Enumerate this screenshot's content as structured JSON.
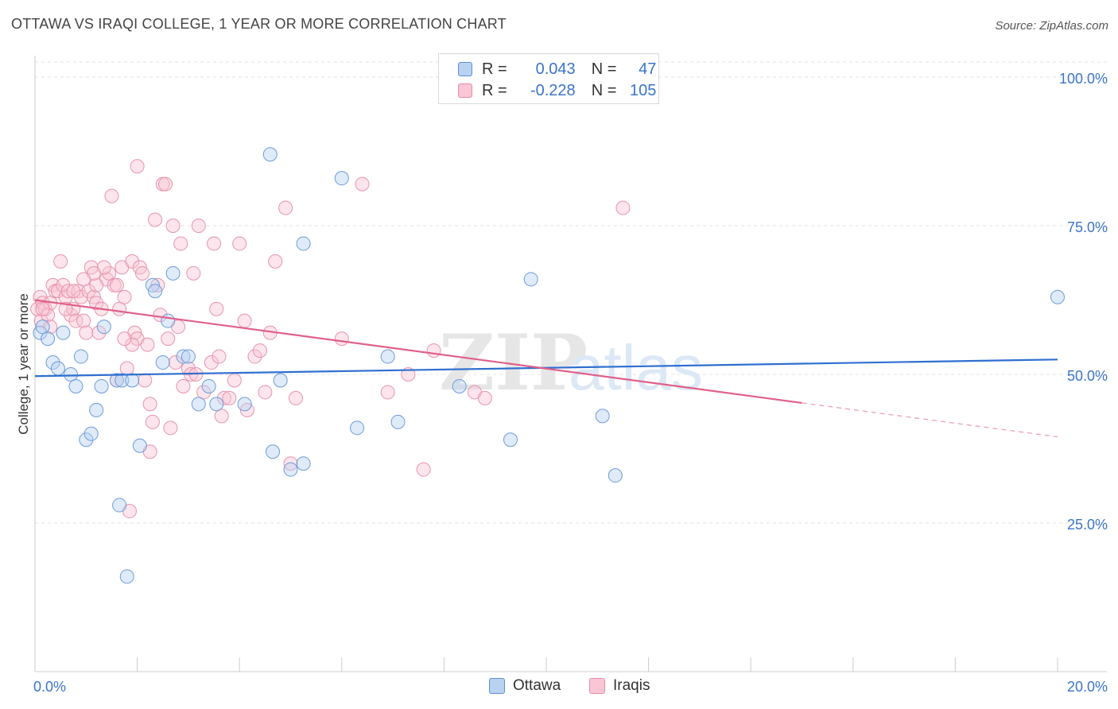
{
  "title": "OTTAWA VS IRAQI COLLEGE, 1 YEAR OR MORE CORRELATION CHART",
  "source": "Source: ZipAtlas.com",
  "watermark": {
    "zip": "ZIP",
    "atlas": "atlas"
  },
  "legend": {
    "r_label": "R =",
    "n_label": "N =",
    "series": [
      {
        "name": "Ottawa",
        "r": "0.043",
        "n": "47",
        "fill": "#b9d2f2",
        "stroke": "#5b8fd6"
      },
      {
        "name": "Iraqis",
        "r": "-0.228",
        "n": "105",
        "fill": "#f8c6d5",
        "stroke": "#e88aa8"
      }
    ]
  },
  "chart_data": {
    "type": "scatter",
    "title": "OTTAWA VS IRAQI COLLEGE, 1 YEAR OR MORE CORRELATION CHART",
    "xlabel": "",
    "ylabel": "College, 1 year or more",
    "xlim": [
      0,
      20
    ],
    "ylim": [
      0,
      103
    ],
    "x_tick_labels": [
      "0.0%",
      "20.0%"
    ],
    "y_tick_labels": [
      {
        "value": 25,
        "label": "25.0%"
      },
      {
        "value": 50,
        "label": "50.0%"
      },
      {
        "value": 75,
        "label": "75.0%"
      },
      {
        "value": 100,
        "label": "100.0%"
      }
    ],
    "series": [
      {
        "name": "Ottawa",
        "color": "#5b8fd6",
        "fill": "#b9d2f2",
        "trend": {
          "x": [
            0,
            20
          ],
          "y": [
            49.7,
            52.5
          ]
        },
        "points": [
          [
            0.1,
            57
          ],
          [
            0.15,
            58
          ],
          [
            0.25,
            56
          ],
          [
            0.35,
            52
          ],
          [
            0.45,
            51
          ],
          [
            0.55,
            57
          ],
          [
            0.7,
            50
          ],
          [
            0.8,
            48
          ],
          [
            0.9,
            53
          ],
          [
            1.0,
            39
          ],
          [
            1.1,
            40
          ],
          [
            1.2,
            44
          ],
          [
            1.3,
            48
          ],
          [
            1.35,
            58
          ],
          [
            1.6,
            49
          ],
          [
            1.7,
            49
          ],
          [
            1.65,
            28
          ],
          [
            1.8,
            16
          ],
          [
            1.9,
            49
          ],
          [
            2.05,
            38
          ],
          [
            2.3,
            65
          ],
          [
            2.35,
            64
          ],
          [
            2.5,
            52
          ],
          [
            2.6,
            59
          ],
          [
            2.7,
            67
          ],
          [
            2.9,
            53
          ],
          [
            3.0,
            53
          ],
          [
            3.2,
            45
          ],
          [
            3.4,
            48
          ],
          [
            3.55,
            45
          ],
          [
            4.1,
            45
          ],
          [
            4.6,
            87
          ],
          [
            4.65,
            37
          ],
          [
            4.8,
            49
          ],
          [
            5.0,
            34
          ],
          [
            5.25,
            72
          ],
          [
            5.25,
            35
          ],
          [
            6.0,
            83
          ],
          [
            6.3,
            41
          ],
          [
            6.9,
            53
          ],
          [
            7.1,
            42
          ],
          [
            8.3,
            48
          ],
          [
            9.3,
            39
          ],
          [
            9.7,
            66
          ],
          [
            11.1,
            43
          ],
          [
            11.35,
            33
          ],
          [
            20.0,
            63
          ]
        ]
      },
      {
        "name": "Iraqis",
        "color": "#e0608a",
        "fill": "#f8c6d5",
        "trend": {
          "x": [
            0,
            15
          ],
          "y": [
            62.5,
            45.2
          ],
          "dashed_x": [
            15,
            20
          ],
          "dashed_y": [
            45.2,
            39.5
          ]
        },
        "points": [
          [
            0.05,
            61
          ],
          [
            0.1,
            63
          ],
          [
            0.12,
            59
          ],
          [
            0.15,
            62
          ],
          [
            0.2,
            61
          ],
          [
            0.25,
            60
          ],
          [
            0.3,
            62
          ],
          [
            0.35,
            65
          ],
          [
            0.4,
            64
          ],
          [
            0.45,
            64
          ],
          [
            0.5,
            69
          ],
          [
            0.55,
            65
          ],
          [
            0.6,
            63
          ],
          [
            0.65,
            64
          ],
          [
            0.7,
            60
          ],
          [
            0.75,
            61
          ],
          [
            0.8,
            59
          ],
          [
            0.85,
            64
          ],
          [
            0.9,
            63
          ],
          [
            0.95,
            59
          ],
          [
            1.0,
            57
          ],
          [
            1.05,
            64
          ],
          [
            1.1,
            68
          ],
          [
            1.15,
            63
          ],
          [
            1.2,
            62
          ],
          [
            1.25,
            57
          ],
          [
            1.3,
            61
          ],
          [
            1.4,
            66
          ],
          [
            1.45,
            67
          ],
          [
            1.5,
            80
          ],
          [
            1.55,
            65
          ],
          [
            1.6,
            49
          ],
          [
            1.65,
            61
          ],
          [
            1.7,
            68
          ],
          [
            1.75,
            63
          ],
          [
            1.8,
            51
          ],
          [
            1.85,
            27
          ],
          [
            1.9,
            69
          ],
          [
            1.95,
            57
          ],
          [
            2.0,
            56
          ],
          [
            2.05,
            68
          ],
          [
            2.1,
            67
          ],
          [
            2.15,
            49
          ],
          [
            2.2,
            55
          ],
          [
            2.25,
            45
          ],
          [
            2.3,
            42
          ],
          [
            2.35,
            76
          ],
          [
            2.4,
            65
          ],
          [
            2.5,
            82
          ],
          [
            2.55,
            82
          ],
          [
            2.6,
            56
          ],
          [
            2.65,
            41
          ],
          [
            2.7,
            75
          ],
          [
            2.75,
            52
          ],
          [
            2.8,
            58
          ],
          [
            2.85,
            72
          ],
          [
            2.9,
            48
          ],
          [
            3.0,
            51
          ],
          [
            3.05,
            50
          ],
          [
            3.1,
            67
          ],
          [
            3.2,
            75
          ],
          [
            3.3,
            47
          ],
          [
            3.45,
            52
          ],
          [
            3.5,
            72
          ],
          [
            3.55,
            61
          ],
          [
            3.6,
            53
          ],
          [
            3.65,
            43
          ],
          [
            3.7,
            46
          ],
          [
            3.8,
            46
          ],
          [
            3.9,
            49
          ],
          [
            4.0,
            72
          ],
          [
            4.1,
            59
          ],
          [
            4.15,
            44
          ],
          [
            4.3,
            53
          ],
          [
            4.4,
            54
          ],
          [
            4.5,
            47
          ],
          [
            4.6,
            57
          ],
          [
            4.7,
            69
          ],
          [
            4.9,
            78
          ],
          [
            5.0,
            35
          ],
          [
            5.1,
            46
          ],
          [
            6.0,
            56
          ],
          [
            6.4,
            82
          ],
          [
            6.9,
            47
          ],
          [
            7.3,
            50
          ],
          [
            7.6,
            34
          ],
          [
            7.8,
            54
          ],
          [
            8.6,
            47
          ],
          [
            8.8,
            46
          ],
          [
            1.2,
            65
          ],
          [
            0.6,
            61
          ],
          [
            1.35,
            68
          ],
          [
            2.45,
            60
          ],
          [
            0.75,
            64
          ],
          [
            1.9,
            55
          ],
          [
            2.25,
            37
          ],
          [
            3.15,
            50
          ],
          [
            0.3,
            58
          ],
          [
            1.15,
            67
          ],
          [
            1.6,
            65
          ],
          [
            0.15,
            61
          ],
          [
            11.5,
            78
          ],
          [
            2.0,
            85
          ],
          [
            0.95,
            66
          ],
          [
            1.75,
            56
          ]
        ]
      }
    ]
  }
}
